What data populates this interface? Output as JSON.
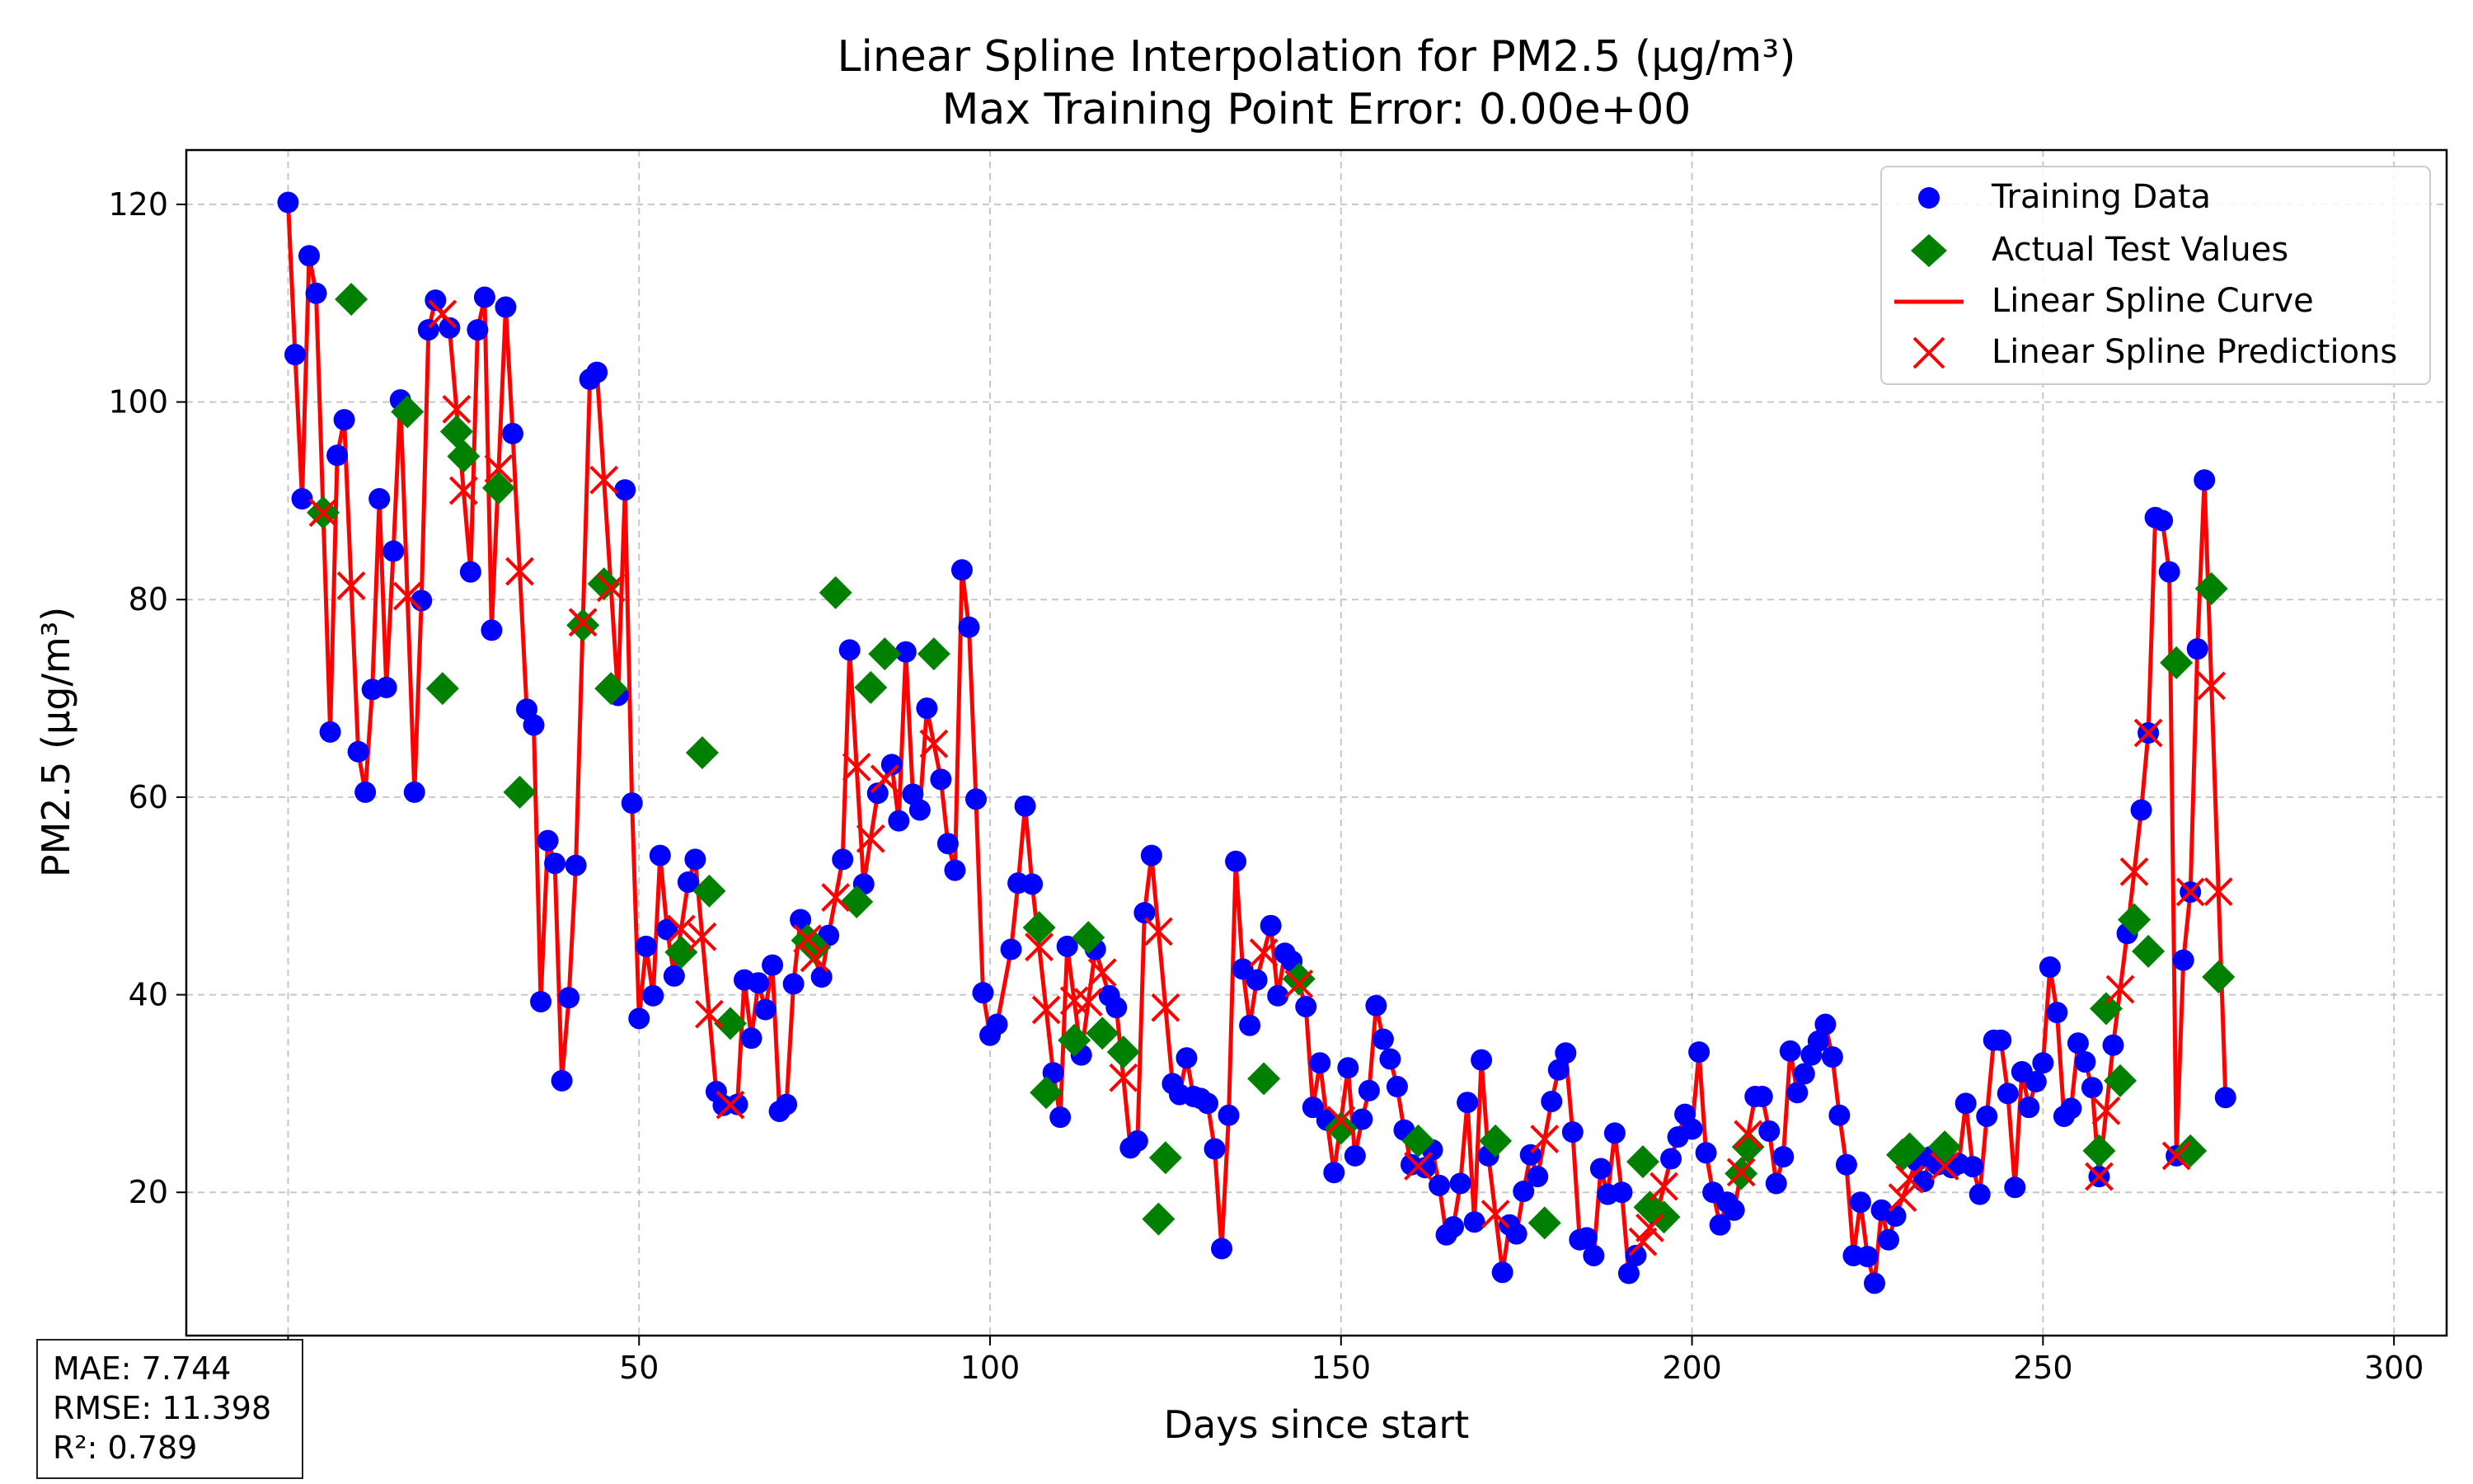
{
  "chart_data": {
    "type": "scatter",
    "title": "Linear Spline Interpolation for PM2.5 (µg/m³)",
    "subtitle": "Max Training Point Error: 0.00e+00",
    "xlabel": "Days since start",
    "ylabel": "PM2.5 (µg/m³)",
    "xlim": [
      -14.5,
      307.5
    ],
    "ylim": [
      5.5,
      125.5
    ],
    "xticks": [
      0,
      50,
      100,
      150,
      200,
      250,
      300
    ],
    "yticks": [
      20,
      40,
      60,
      80,
      100,
      120
    ],
    "grid": true,
    "legend_position": "top-right",
    "colors": {
      "training": "#0000ff",
      "test": "#008000",
      "spline": "#ff0000",
      "pred": "#ff0000"
    },
    "legend": {
      "training": "Training Data",
      "test": "Actual Test Values",
      "spline": "Linear Spline Curve",
      "pred": "Linear Spline Predictions"
    },
    "training_points": [
      [
        0,
        120.2
      ],
      [
        1,
        104.8
      ],
      [
        2,
        90.2
      ],
      [
        3,
        114.8
      ],
      [
        4,
        111.0
      ],
      [
        6,
        66.6
      ],
      [
        7,
        94.6
      ],
      [
        8,
        98.2
      ],
      [
        10,
        64.6
      ],
      [
        11,
        60.5
      ],
      [
        12,
        70.9
      ],
      [
        13,
        90.2
      ],
      [
        14,
        71.1
      ],
      [
        15,
        84.9
      ],
      [
        16,
        100.2
      ],
      [
        18,
        60.5
      ],
      [
        19,
        79.9
      ],
      [
        20,
        107.3
      ],
      [
        21,
        110.3
      ],
      [
        23,
        107.5
      ],
      [
        26,
        82.8
      ],
      [
        27,
        107.3
      ],
      [
        28,
        110.6
      ],
      [
        29,
        76.9
      ],
      [
        31,
        109.6
      ],
      [
        32,
        96.8
      ],
      [
        34,
        68.9
      ],
      [
        35,
        67.3
      ],
      [
        36,
        39.3
      ],
      [
        37,
        55.6
      ],
      [
        38,
        53.3
      ],
      [
        39,
        31.3
      ],
      [
        40,
        39.7
      ],
      [
        41,
        53.1
      ],
      [
        43,
        102.3
      ],
      [
        44,
        103.0
      ],
      [
        47,
        70.3
      ],
      [
        48,
        91.1
      ],
      [
        49,
        59.4
      ],
      [
        50,
        37.6
      ],
      [
        51,
        44.9
      ],
      [
        52,
        39.9
      ],
      [
        53,
        54.1
      ],
      [
        54,
        46.6
      ],
      [
        55,
        41.9
      ],
      [
        57,
        51.4
      ],
      [
        58,
        53.7
      ],
      [
        61,
        30.2
      ],
      [
        62,
        28.8
      ],
      [
        64,
        28.9
      ],
      [
        65,
        41.5
      ],
      [
        66,
        35.6
      ],
      [
        67,
        41.2
      ],
      [
        68,
        38.5
      ],
      [
        69,
        43.0
      ],
      [
        70,
        28.2
      ],
      [
        71,
        28.9
      ],
      [
        72,
        41.1
      ],
      [
        73,
        47.6
      ],
      [
        76,
        41.8
      ],
      [
        77,
        46.0
      ],
      [
        79,
        53.7
      ],
      [
        80,
        74.9
      ],
      [
        82,
        51.2
      ],
      [
        84,
        60.4
      ],
      [
        86,
        63.3
      ],
      [
        87,
        57.6
      ],
      [
        88,
        74.7
      ],
      [
        89,
        60.3
      ],
      [
        90,
        58.7
      ],
      [
        91,
        69.0
      ],
      [
        93,
        61.8
      ],
      [
        94,
        55.3
      ],
      [
        95,
        52.6
      ],
      [
        96,
        83.0
      ],
      [
        97,
        77.2
      ],
      [
        98,
        59.8
      ],
      [
        99,
        40.2
      ],
      [
        100,
        35.9
      ],
      [
        101,
        37.0
      ],
      [
        103,
        44.6
      ],
      [
        104,
        51.3
      ],
      [
        105,
        59.1
      ],
      [
        106,
        51.2
      ],
      [
        109,
        32.1
      ],
      [
        110,
        27.6
      ],
      [
        111,
        44.9
      ],
      [
        113,
        33.9
      ],
      [
        115,
        44.6
      ],
      [
        117,
        39.9
      ],
      [
        118,
        38.7
      ],
      [
        120,
        24.5
      ],
      [
        121,
        25.2
      ],
      [
        122,
        48.3
      ],
      [
        123,
        54.1
      ],
      [
        126,
        31.0
      ],
      [
        127,
        29.9
      ],
      [
        128,
        33.6
      ],
      [
        129,
        29.7
      ],
      [
        130,
        29.5
      ],
      [
        131,
        29.0
      ],
      [
        132,
        24.4
      ],
      [
        133,
        14.3
      ],
      [
        134,
        27.8
      ],
      [
        135,
        53.5
      ],
      [
        136,
        42.6
      ],
      [
        137,
        36.9
      ],
      [
        138,
        41.5
      ],
      [
        140,
        47.0
      ],
      [
        141,
        39.9
      ],
      [
        142,
        44.2
      ],
      [
        143,
        43.4
      ],
      [
        145,
        38.8
      ],
      [
        146,
        28.6
      ],
      [
        147,
        33.1
      ],
      [
        148,
        27.3
      ],
      [
        149,
        22.0
      ],
      [
        151,
        32.6
      ],
      [
        152,
        23.7
      ],
      [
        153,
        27.4
      ],
      [
        154,
        30.3
      ],
      [
        155,
        38.9
      ],
      [
        156,
        35.5
      ],
      [
        157,
        33.5
      ],
      [
        158,
        30.7
      ],
      [
        159,
        26.3
      ],
      [
        160,
        22.8
      ],
      [
        162,
        22.5
      ],
      [
        163,
        24.3
      ],
      [
        164,
        20.7
      ],
      [
        165,
        15.7
      ],
      [
        166,
        16.5
      ],
      [
        167,
        20.9
      ],
      [
        168,
        29.1
      ],
      [
        169,
        17.0
      ],
      [
        170,
        33.4
      ],
      [
        171,
        23.7
      ],
      [
        173,
        11.9
      ],
      [
        174,
        16.7
      ],
      [
        175,
        15.8
      ],
      [
        176,
        20.1
      ],
      [
        177,
        23.8
      ],
      [
        178,
        21.6
      ],
      [
        180,
        29.2
      ],
      [
        181,
        32.4
      ],
      [
        182,
        34.1
      ],
      [
        183,
        26.1
      ],
      [
        184,
        15.2
      ],
      [
        185,
        15.4
      ],
      [
        186,
        13.6
      ],
      [
        187,
        22.4
      ],
      [
        188,
        19.8
      ],
      [
        189,
        26.0
      ],
      [
        190,
        20.0
      ],
      [
        191,
        11.8
      ],
      [
        192,
        13.6
      ],
      [
        195,
        17.8
      ],
      [
        197,
        23.4
      ],
      [
        198,
        25.6
      ],
      [
        199,
        27.9
      ],
      [
        200,
        26.4
      ],
      [
        201,
        34.2
      ],
      [
        202,
        24.0
      ],
      [
        203,
        20.0
      ],
      [
        204,
        16.7
      ],
      [
        205,
        19.0
      ],
      [
        206,
        18.2
      ],
      [
        209,
        29.7
      ],
      [
        210,
        29.7
      ],
      [
        211,
        26.2
      ],
      [
        212,
        20.9
      ],
      [
        213,
        23.6
      ],
      [
        214,
        34.3
      ],
      [
        215,
        30.1
      ],
      [
        216,
        32.0
      ],
      [
        217,
        33.9
      ],
      [
        218,
        35.3
      ],
      [
        219,
        37.0
      ],
      [
        220,
        33.7
      ],
      [
        221,
        27.8
      ],
      [
        222,
        22.8
      ],
      [
        223,
        13.6
      ],
      [
        224,
        19.0
      ],
      [
        225,
        13.5
      ],
      [
        226,
        10.8
      ],
      [
        227,
        18.2
      ],
      [
        228,
        15.2
      ],
      [
        229,
        17.6
      ],
      [
        232,
        23.2
      ],
      [
        233,
        21.1
      ],
      [
        234,
        23.6
      ],
      [
        235,
        22.8
      ],
      [
        237,
        22.5
      ],
      [
        238,
        22.9
      ],
      [
        239,
        29.0
      ],
      [
        240,
        22.6
      ],
      [
        241,
        19.8
      ],
      [
        242,
        27.7
      ],
      [
        243,
        35.4
      ],
      [
        244,
        35.4
      ],
      [
        245,
        30.0
      ],
      [
        246,
        20.5
      ],
      [
        247,
        32.2
      ],
      [
        248,
        28.6
      ],
      [
        249,
        31.2
      ],
      [
        250,
        33.1
      ],
      [
        251,
        42.8
      ],
      [
        252,
        38.2
      ],
      [
        253,
        27.7
      ],
      [
        254,
        28.5
      ],
      [
        255,
        35.1
      ],
      [
        256,
        33.2
      ],
      [
        257,
        30.6
      ],
      [
        258,
        21.6
      ],
      [
        260,
        34.9
      ],
      [
        262,
        46.2
      ],
      [
        264,
        58.7
      ],
      [
        265,
        66.5
      ],
      [
        266,
        88.3
      ],
      [
        267,
        88.0
      ],
      [
        268,
        82.8
      ],
      [
        269,
        23.7
      ],
      [
        270,
        43.5
      ],
      [
        271,
        50.4
      ],
      [
        272,
        75.0
      ],
      [
        273,
        92.1
      ],
      [
        276,
        29.6
      ]
    ],
    "test_points": [
      [
        5,
        88.8
      ],
      [
        9,
        110.4
      ],
      [
        17,
        99.0
      ],
      [
        22,
        71.0
      ],
      [
        24,
        97.0
      ],
      [
        25,
        94.5
      ],
      [
        30,
        91.3
      ],
      [
        33,
        60.5
      ],
      [
        42,
        77.4
      ],
      [
        45,
        81.6
      ],
      [
        46,
        71.0
      ],
      [
        56,
        44.3
      ],
      [
        59,
        64.5
      ],
      [
        60,
        50.5
      ],
      [
        63,
        37.1
      ],
      [
        74,
        45.5
      ],
      [
        75,
        44.8
      ],
      [
        78,
        80.7
      ],
      [
        81,
        49.4
      ],
      [
        83,
        71.1
      ],
      [
        85,
        74.5
      ],
      [
        92,
        74.5
      ],
      [
        107,
        46.8
      ],
      [
        108,
        30.1
      ],
      [
        112,
        35.4
      ],
      [
        114,
        45.8
      ],
      [
        116,
        36.1
      ],
      [
        119,
        34.2
      ],
      [
        124,
        17.3
      ],
      [
        125,
        23.5
      ],
      [
        139,
        31.5
      ],
      [
        144,
        41.6
      ],
      [
        150,
        26.5
      ],
      [
        161,
        25.2
      ],
      [
        172,
        25.2
      ],
      [
        179,
        16.9
      ],
      [
        193,
        23.1
      ],
      [
        194,
        18.5
      ],
      [
        196,
        17.5
      ],
      [
        207,
        21.9
      ],
      [
        208,
        24.6
      ],
      [
        230,
        23.8
      ],
      [
        231,
        24.4
      ],
      [
        236,
        24.6
      ],
      [
        258,
        24.2
      ],
      [
        259,
        38.6
      ],
      [
        261,
        31.3
      ],
      [
        263,
        47.6
      ],
      [
        265,
        44.4
      ],
      [
        269,
        73.6
      ],
      [
        271,
        24.2
      ],
      [
        274,
        81.1
      ],
      [
        275,
        41.8
      ]
    ],
    "test_points_x_note": ""
  },
  "metrics": {
    "mae": "MAE: 7.744",
    "rmse": "RMSE: 11.398",
    "r2": "R²: 0.789"
  }
}
